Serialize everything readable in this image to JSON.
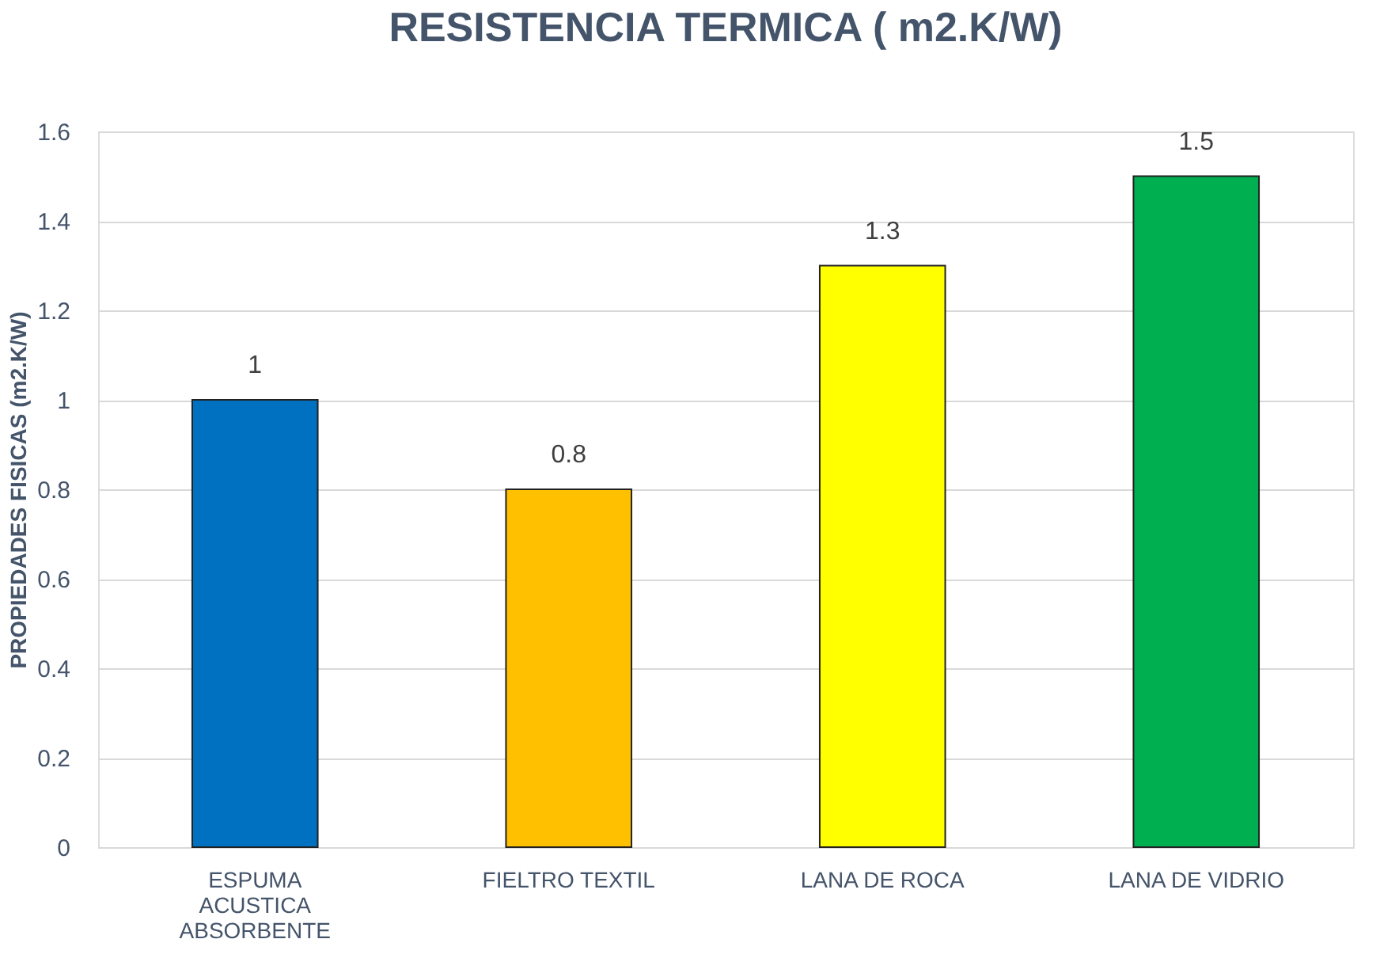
{
  "chart_data": {
    "type": "bar",
    "title": "RESISTENCIA TERMICA ( m2.K/W)",
    "ylabel": "PROPIEDADES FISICAS (m2.K/W)",
    "categories": [
      "ESPUMA ACUSTICA ABSORBENTE",
      "FIELTRO TEXTIL",
      "LANA DE ROCA",
      "LANA DE VIDRIO"
    ],
    "values": [
      1,
      0.8,
      1.3,
      1.5
    ],
    "colors": [
      "#0070c0",
      "#ffc000",
      "#ffff00",
      "#00b050"
    ],
    "ylim": [
      0,
      1.6
    ],
    "yticks": [
      0,
      0.2,
      0.4,
      0.6,
      0.8,
      1,
      1.2,
      1.4,
      1.6
    ],
    "grid": "y",
    "data_labels": true
  }
}
